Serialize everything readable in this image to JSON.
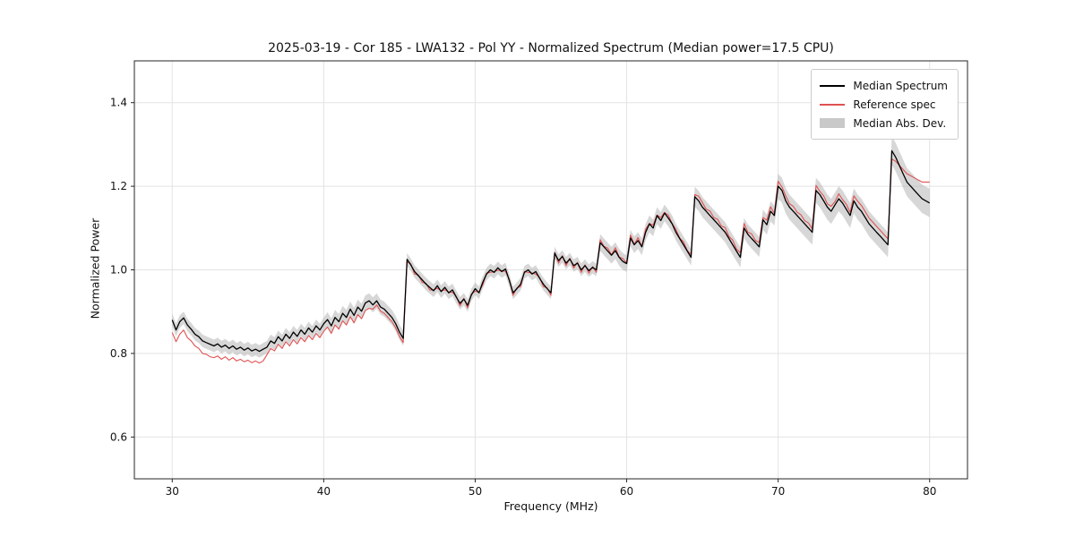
{
  "chart_data": {
    "type": "line",
    "title": "2025-03-19 - Cor 185 - LWA132 - Pol YY - Normalized Spectrum (Median power=17.5 CPU)",
    "xlabel": "Frequency (MHz)",
    "ylabel": "Normalized Power",
    "xlim": [
      27.5,
      82.5
    ],
    "ylim": [
      0.5,
      1.5
    ],
    "xticks": [
      "30",
      "40",
      "50",
      "60",
      "70",
      "80"
    ],
    "yticks": [
      "0.6",
      "0.8",
      "1.0",
      "1.2",
      "1.4"
    ],
    "grid": true,
    "legend_position": "upper right",
    "x_start": 30.0,
    "x_step": 0.25,
    "n_points": 201,
    "colors": {
      "median": "#000000",
      "reference": "#e05252",
      "mad_band": "#b0b0b0",
      "grid": "#e3e3e3",
      "frame": "#262626"
    },
    "legend": [
      {
        "label": "Median Spectrum",
        "swatch": "line",
        "color": "#000000"
      },
      {
        "label": "Reference spec",
        "swatch": "line",
        "color": "#e05252"
      },
      {
        "label": "Median Abs. Dev.",
        "swatch": "patch",
        "color": "#c9c9c9"
      }
    ],
    "series": [
      {
        "name": "Median Spectrum",
        "values": [
          0.88,
          0.856,
          0.876,
          0.885,
          0.868,
          0.858,
          0.846,
          0.84,
          0.83,
          0.826,
          0.822,
          0.818,
          0.823,
          0.815,
          0.82,
          0.812,
          0.818,
          0.81,
          0.815,
          0.808,
          0.813,
          0.806,
          0.81,
          0.805,
          0.81,
          0.815,
          0.83,
          0.824,
          0.84,
          0.83,
          0.846,
          0.836,
          0.851,
          0.841,
          0.856,
          0.846,
          0.861,
          0.851,
          0.866,
          0.856,
          0.871,
          0.881,
          0.866,
          0.886,
          0.876,
          0.896,
          0.886,
          0.906,
          0.891,
          0.911,
          0.901,
          0.921,
          0.926,
          0.916,
          0.926,
          0.911,
          0.906,
          0.896,
          0.886,
          0.871,
          0.851,
          0.836,
          1.025,
          1.012,
          0.996,
          0.986,
          0.976,
          0.966,
          0.958,
          0.95,
          0.962,
          0.948,
          0.958,
          0.945,
          0.952,
          0.935,
          0.92,
          0.93,
          0.915,
          0.94,
          0.955,
          0.945,
          0.97,
          0.99,
          1.0,
          0.994,
          1.005,
          0.996,
          1.002,
          0.975,
          0.945,
          0.955,
          0.966,
          0.994,
          1.0,
          0.99,
          0.996,
          0.98,
          0.966,
          0.955,
          0.945,
          1.04,
          1.022,
          1.032,
          1.016,
          1.026,
          1.01,
          1.016,
          1.0,
          1.01,
          0.998,
          1.006,
          1.0,
          1.065,
          1.055,
          1.045,
          1.035,
          1.046,
          1.03,
          1.02,
          1.015,
          1.076,
          1.06,
          1.07,
          1.055,
          1.09,
          1.11,
          1.1,
          1.13,
          1.118,
          1.136,
          1.124,
          1.11,
          1.09,
          1.075,
          1.06,
          1.045,
          1.03,
          1.175,
          1.165,
          1.15,
          1.14,
          1.13,
          1.12,
          1.11,
          1.1,
          1.09,
          1.075,
          1.06,
          1.045,
          1.03,
          1.1,
          1.085,
          1.075,
          1.065,
          1.055,
          1.12,
          1.108,
          1.14,
          1.13,
          1.2,
          1.19,
          1.165,
          1.15,
          1.14,
          1.13,
          1.12,
          1.11,
          1.1,
          1.09,
          1.19,
          1.18,
          1.165,
          1.15,
          1.14,
          1.155,
          1.17,
          1.16,
          1.145,
          1.13,
          1.165,
          1.15,
          1.14,
          1.125,
          1.11,
          1.1,
          1.09,
          1.08,
          1.07,
          1.06,
          1.285,
          1.27,
          1.25,
          1.23,
          1.21,
          1.2,
          1.19,
          1.18,
          1.17,
          1.165,
          1.16
        ]
      },
      {
        "name": "Reference spec",
        "values": [
          0.85,
          0.828,
          0.846,
          0.856,
          0.838,
          0.83,
          0.818,
          0.812,
          0.8,
          0.798,
          0.792,
          0.79,
          0.794,
          0.786,
          0.792,
          0.784,
          0.79,
          0.782,
          0.786,
          0.78,
          0.784,
          0.778,
          0.782,
          0.777,
          0.782,
          0.797,
          0.812,
          0.806,
          0.822,
          0.812,
          0.828,
          0.818,
          0.833,
          0.823,
          0.838,
          0.828,
          0.843,
          0.833,
          0.848,
          0.838,
          0.853,
          0.863,
          0.848,
          0.868,
          0.858,
          0.878,
          0.868,
          0.888,
          0.873,
          0.893,
          0.883,
          0.903,
          0.908,
          0.906,
          0.916,
          0.901,
          0.896,
          0.886,
          0.876,
          0.861,
          0.841,
          0.826,
          1.019,
          1.014,
          0.99,
          0.988,
          0.97,
          0.968,
          0.952,
          0.952,
          0.956,
          0.95,
          0.952,
          0.947,
          0.946,
          0.937,
          0.914,
          0.932,
          0.909,
          0.942,
          0.949,
          0.947,
          0.964,
          0.992,
          0.994,
          0.996,
          0.999,
          0.998,
          0.996,
          0.977,
          0.939,
          0.957,
          0.96,
          0.996,
          0.994,
          0.992,
          0.99,
          0.982,
          0.96,
          0.957,
          0.939,
          1.042,
          1.016,
          1.034,
          1.01,
          1.028,
          1.004,
          1.018,
          0.994,
          1.012,
          0.992,
          1.008,
          0.994,
          1.072,
          1.056,
          1.052,
          1.036,
          1.053,
          1.031,
          1.027,
          1.016,
          1.083,
          1.061,
          1.077,
          1.056,
          1.097,
          1.111,
          1.107,
          1.131,
          1.125,
          1.137,
          1.131,
          1.111,
          1.097,
          1.076,
          1.067,
          1.046,
          1.037,
          1.18,
          1.176,
          1.161,
          1.145,
          1.141,
          1.125,
          1.121,
          1.105,
          1.101,
          1.08,
          1.071,
          1.05,
          1.041,
          1.111,
          1.09,
          1.086,
          1.07,
          1.066,
          1.125,
          1.119,
          1.151,
          1.135,
          1.212,
          1.198,
          1.177,
          1.158,
          1.152,
          1.138,
          1.132,
          1.118,
          1.112,
          1.098,
          1.202,
          1.188,
          1.177,
          1.158,
          1.152,
          1.163,
          1.182,
          1.168,
          1.157,
          1.138,
          1.177,
          1.164,
          1.154,
          1.139,
          1.124,
          1.114,
          1.104,
          1.094,
          1.084,
          1.074,
          1.265,
          1.26,
          1.25,
          1.24,
          1.23,
          1.225,
          1.22,
          1.215,
          1.21,
          1.21,
          1.21
        ]
      }
    ],
    "mad_halfwidth_rle": [
      [
        41,
        0.015
      ],
      [
        21,
        0.018
      ],
      [
        51,
        0.015
      ],
      [
        25,
        0.02
      ],
      [
        22,
        0.024
      ],
      [
        30,
        0.03
      ],
      [
        11,
        0.034
      ]
    ]
  }
}
